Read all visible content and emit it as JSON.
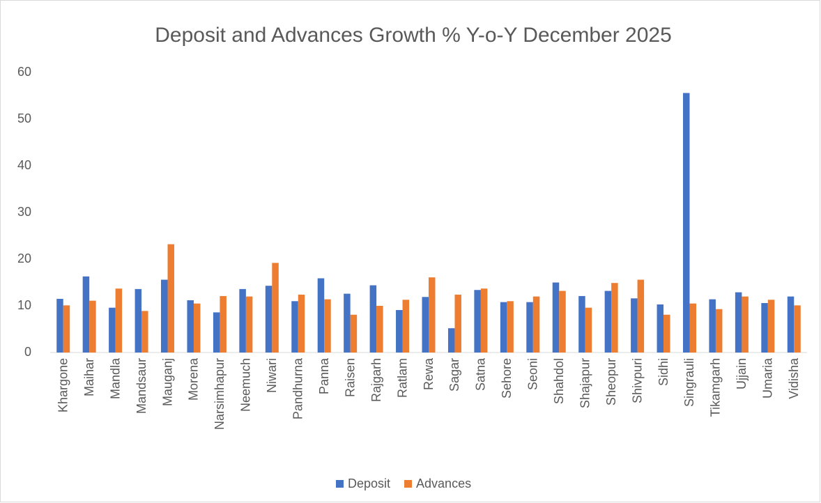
{
  "chart_data": {
    "type": "bar",
    "title": "Deposit and Advances Growth % Y-o-Y December 2025",
    "categories": [
      "Khargone",
      "Maihar",
      "Mandla",
      "Mandsaur",
      "Mauganj",
      "Morena",
      "Narsimhapur",
      "Neemuch",
      "Niwari",
      "Pandhurna",
      "Panna",
      "Raisen",
      "Rajgarh",
      "Ratlam",
      "Rewa",
      "Sagar",
      "Satna",
      "Sehore",
      "Seoni",
      "Shahdol",
      "Shajapur",
      "Sheopur",
      "Shivpuri",
      "Sidhi",
      "Singrauli",
      "Tikamgarh",
      "Ujjain",
      "Umaria",
      "Vidisha"
    ],
    "series": [
      {
        "name": "Deposit",
        "color": "#4472c4",
        "values": [
          11.5,
          16.3,
          9.6,
          13.6,
          15.6,
          11.2,
          8.6,
          13.6,
          14.3,
          11.0,
          15.9,
          12.6,
          14.4,
          9.1,
          11.9,
          5.2,
          13.4,
          10.8,
          10.8,
          15.0,
          12.1,
          13.2,
          11.6,
          10.3,
          55.6,
          11.4,
          12.9,
          10.6,
          12.0
        ]
      },
      {
        "name": "Advances",
        "color": "#ed7d31",
        "values": [
          10.1,
          11.1,
          13.7,
          8.9,
          23.2,
          10.5,
          12.1,
          12.0,
          19.2,
          12.4,
          11.4,
          8.1,
          10.0,
          11.3,
          16.1,
          12.4,
          13.7,
          11.0,
          12.0,
          13.2,
          9.6,
          14.9,
          15.6,
          8.1,
          10.5,
          9.3,
          12.0,
          11.3,
          10.1
        ]
      }
    ],
    "ylim": [
      0,
      60
    ],
    "yticks": [
      0,
      10,
      20,
      30,
      40,
      50,
      60
    ],
    "grid": false,
    "legend": "bottom"
  }
}
